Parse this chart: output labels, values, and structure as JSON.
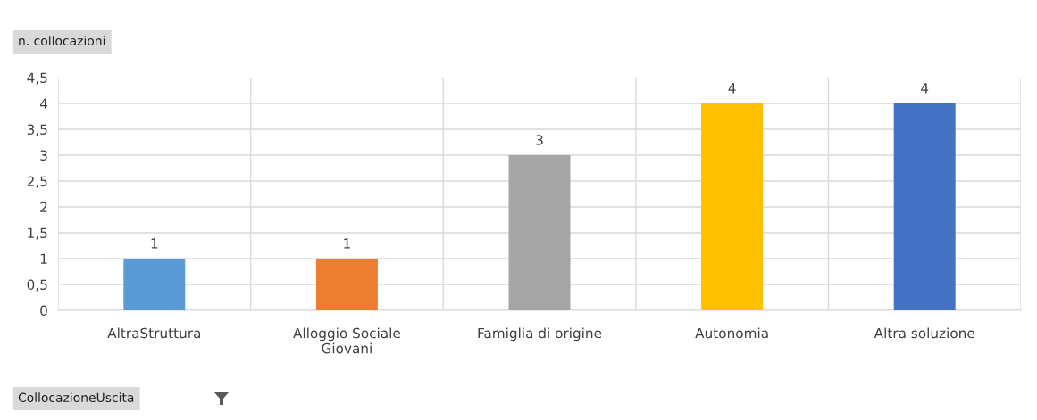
{
  "chart_data": {
    "type": "bar",
    "ylabel": "n. collocazioni",
    "categories": [
      "AltraStruttura",
      "Alloggio Sociale Giovani",
      "Famiglia di origine",
      "Autonomia",
      "Altra soluzione"
    ],
    "values": [
      1,
      1,
      3,
      4,
      4
    ],
    "colors": [
      "#5b9bd5",
      "#ed7d31",
      "#a5a5a5",
      "#ffc000",
      "#4472c4"
    ],
    "ylim": [
      0,
      4.5
    ],
    "yticks": [
      0,
      {
        "value": 0.5,
        "label": "0,5"
      },
      1,
      {
        "value": 1.5,
        "label": "1,5"
      },
      2,
      {
        "value": 2.5,
        "label": "2,5"
      },
      3,
      {
        "value": 3.5,
        "label": "3,5"
      },
      4,
      {
        "value": 4.5,
        "label": "4,5"
      }
    ],
    "grid": true,
    "data_labels": true,
    "annotations": [
      "CollocazioneUscita"
    ]
  }
}
